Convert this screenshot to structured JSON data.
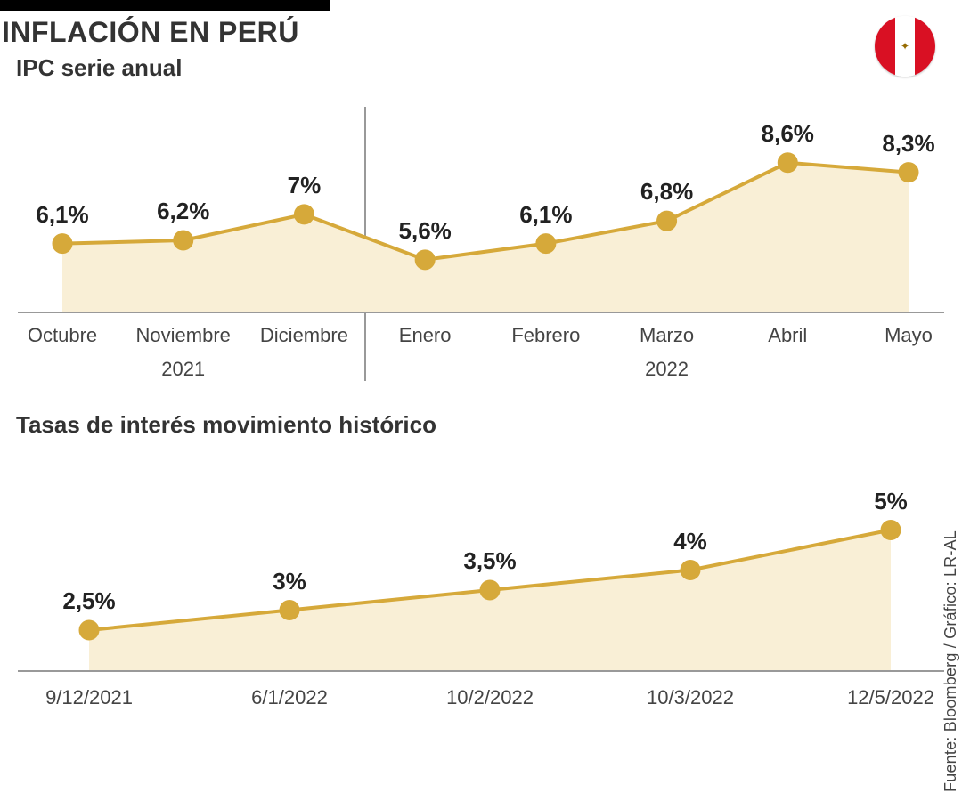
{
  "title": "INFLACIÓN EN PERÚ",
  "source": "Fuente: Bloomberg / Gráfico: LR-AL",
  "flag": {
    "red": "#d91023",
    "white": "#ffffff"
  },
  "palette": {
    "line": "#d6a93a",
    "fill": "#f9efd6",
    "marker_stroke": "#d6a93a",
    "marker_fill": "#d6a93a",
    "axis": "#999999",
    "text": "#222222",
    "bg": "#ffffff"
  },
  "chart1": {
    "type": "line-area",
    "subtitle": "IPC serie anual",
    "labels": [
      "Octubre",
      "Noviembre",
      "Diciembre",
      "Enero",
      "Febrero",
      "Marzo",
      "Abril",
      "Mayo"
    ],
    "values": [
      6.1,
      6.2,
      7.0,
      5.6,
      6.1,
      6.8,
      8.6,
      8.3
    ],
    "display": [
      "6,1%",
      "6,2%",
      "7%",
      "5,6%",
      "6,1%",
      "6,8%",
      "8,6%",
      "8,3%"
    ],
    "ylim": [
      4.0,
      9.5
    ],
    "year_groups": [
      {
        "label": "2021",
        "start": 0,
        "end": 2
      },
      {
        "label": "2022",
        "start": 3,
        "end": 7
      }
    ],
    "divider_after_index": 2,
    "line_width": 4,
    "marker_radius": 11,
    "label_fontsize": 26,
    "xlabel_fontsize": 22
  },
  "chart2": {
    "type": "line-area",
    "subtitle": "Tasas de interés movimiento histórico",
    "labels": [
      "9/12/2021",
      "6/1/2022",
      "10/2/2022",
      "10/3/2022",
      "12/5/2022"
    ],
    "values": [
      2.5,
      3.0,
      3.5,
      4.0,
      5.0
    ],
    "display": [
      "2,5%",
      "3%",
      "3,5%",
      "4%",
      "5%"
    ],
    "ylim": [
      1.5,
      5.5
    ],
    "line_width": 4,
    "marker_radius": 11,
    "label_fontsize": 26,
    "xlabel_fontsize": 22
  }
}
